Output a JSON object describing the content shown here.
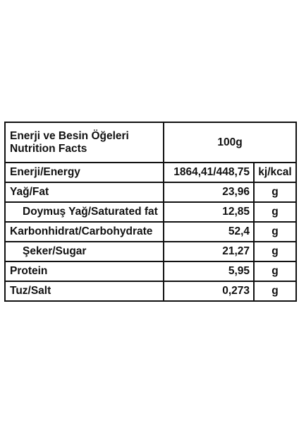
{
  "header": {
    "title_line1": "Enerji ve Besin Öğeleri",
    "title_line2": "Nutrition Facts",
    "serving": "100g"
  },
  "rows": [
    {
      "label": "Enerji/Energy",
      "value": "1864,41/448,75",
      "unit": "kj/kcal"
    },
    {
      "label": "Yağ/Fat",
      "value": "23,96",
      "unit": "g"
    },
    {
      "label": "Doymuş Yağ/Saturated fat",
      "value": "12,85",
      "unit": "g"
    },
    {
      "label": "Karbonhidrat/Carbohydrate",
      "value": "52,4",
      "unit": "g"
    },
    {
      "label": "Şeker/Sugar",
      "value": "21,27",
      "unit": "g"
    },
    {
      "label": "Protein",
      "value": "5,95",
      "unit": "g"
    },
    {
      "label": "Tuz/Salt",
      "value": "0,273",
      "unit": "g"
    }
  ]
}
